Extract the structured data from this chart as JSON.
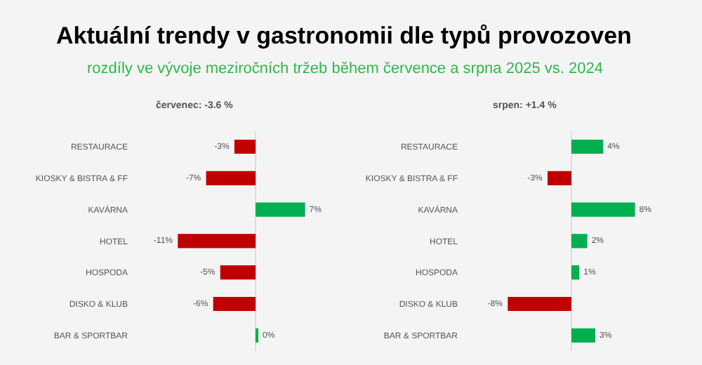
{
  "chart_data": [
    {
      "type": "bar",
      "orientation": "horizontal",
      "title": "Aktuální trendy v gastronomii dle typů provozoven",
      "subtitle": "rozdíly ve vývoje meziročních tržeb během července a srpna 2025 vs. 2024",
      "annotations": [
        "červenec: -3.6 %"
      ],
      "categories": [
        "RESTAURACE",
        "KIOSKY & BISTRA & FF",
        "KAVÁRNA",
        "HOTEL",
        "HOSPODA",
        "DISKO & KLUB",
        "BAR & SPORTBAR"
      ],
      "values": [
        -3,
        -7,
        7,
        -11,
        -5,
        -6,
        0.3
      ],
      "value_labels": [
        "-3%",
        "-7%",
        "7%",
        "-11%",
        "-5%",
        "-6%",
        "0%"
      ],
      "colors": [
        "#c00000",
        "#c00000",
        "#00b050",
        "#c00000",
        "#c00000",
        "#c00000",
        "#00b050"
      ],
      "tick_labels": false,
      "grid": false
    },
    {
      "type": "bar",
      "orientation": "horizontal",
      "annotations": [
        "srpen: +1.4 %"
      ],
      "categories": [
        "RESTAURACE",
        "KIOSKY & BISTRA & FF",
        "KAVÁRNA",
        "HOTEL",
        "HOSPODA",
        "DISKO & KLUB",
        "BAR & SPORTBAR"
      ],
      "values": [
        4,
        -3,
        8,
        2,
        1,
        -8,
        3
      ],
      "value_labels": [
        "4%",
        "-3%",
        "8%",
        "2%",
        "1%",
        "-8%",
        "3%"
      ],
      "colors": [
        "#00b050",
        "#c00000",
        "#00b050",
        "#00b050",
        "#00b050",
        "#c00000",
        "#00b050"
      ],
      "tick_labels": false,
      "grid": false
    }
  ]
}
